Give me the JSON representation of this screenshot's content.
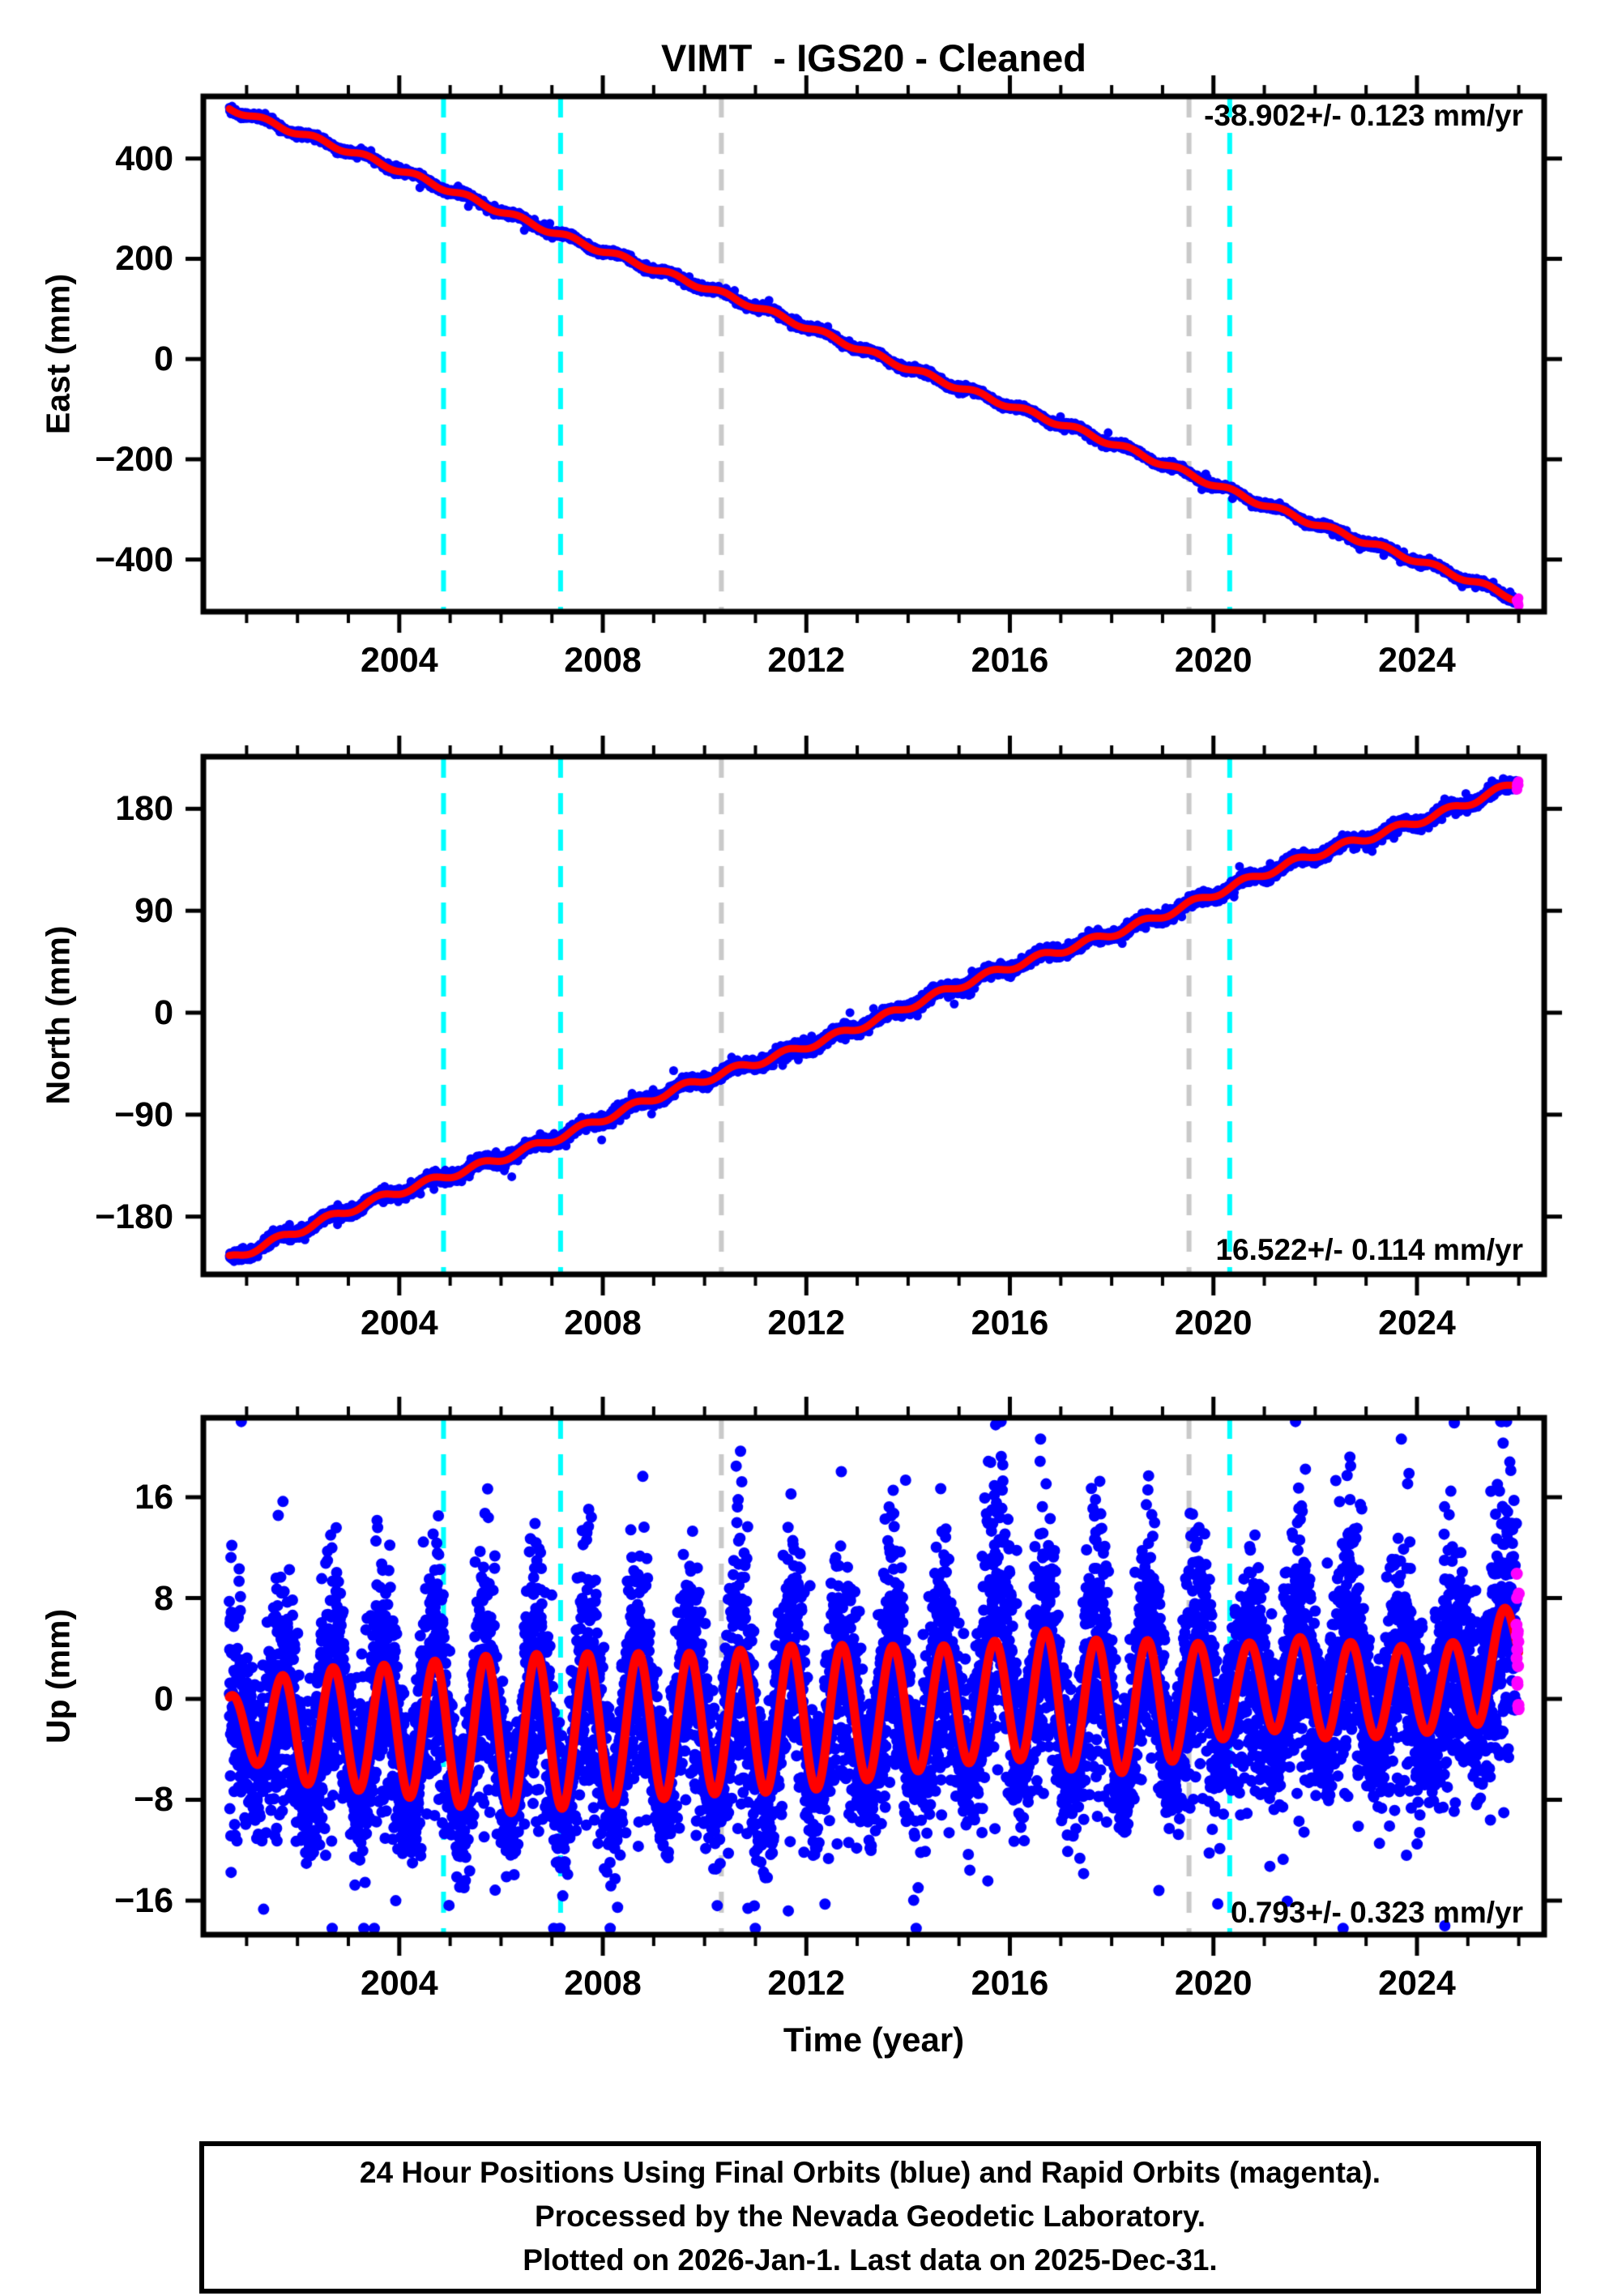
{
  "caption": {
    "lines": [
      "24 Hour Positions Using Final Orbits (blue) and Rapid Orbits (magenta).",
      "Processed by the Nevada Geodetic Laboratory.",
      "Plotted on 2026-Jan-1. Last data on 2025-Dec-31."
    ]
  },
  "chart_data": {
    "type": "scatter",
    "title": "VIMT  - IGS20 - Cleaned",
    "xlabel": "Time (year)",
    "x_axis": {
      "lim": [
        2000.15,
        2026.5
      ],
      "major_ticks": [
        2004,
        2008,
        2012,
        2016,
        2020,
        2024
      ],
      "minor_tick_years": {
        "start": 2001,
        "end": 2026,
        "step": 1
      }
    },
    "data_span": {
      "start": 2000.66,
      "end": 2026.0,
      "points_per_year": 365,
      "rapid_orbit_start": 2025.955
    },
    "vertical_lines": {
      "cyan_years": [
        2004.87,
        2007.17,
        2020.32
      ],
      "gray_years": [
        2010.33,
        2019.52
      ]
    },
    "colors": {
      "final_orbits_blue": "#0000ff",
      "rapid_orbits_magenta": "#ff00ff",
      "model_red": "#ff0000",
      "event_cyan": "#00ffff",
      "event_gray": "#c9c9c9",
      "frame_black": "#000000"
    },
    "rates": {
      "east_mm_per_yr": -38.902,
      "east_sigma": 0.123,
      "north_mm_per_yr": 16.522,
      "north_sigma": 0.114,
      "up_mm_per_yr": 0.793,
      "up_sigma": 0.323
    },
    "panels": [
      {
        "id": "east",
        "ylabel": "East (mm)",
        "ylim": [
          -504,
          524
        ],
        "yticks": [
          400,
          200,
          0,
          -200,
          -400
        ],
        "rate_label": "-38.902+/- 0.123 mm/yr",
        "rate_label_pos": "top-right",
        "model": {
          "kind": "linear",
          "start_value": 504,
          "rate": -38.902,
          "annual_amp": 5.0,
          "annual_phase": 0.1,
          "slow_amp": 3.0,
          "slow_period": 7
        },
        "noise": {
          "sigma": 3.2,
          "outlier_prob": 0.02,
          "outlier_scale": 2.5
        }
      },
      {
        "id": "north",
        "ylabel": "North (mm)",
        "ylim": [
          -231,
          226
        ],
        "yticks": [
          180,
          90,
          0,
          -90,
          -180
        ],
        "rate_label": "16.522+/- 0.114 mm/yr",
        "rate_label_pos": "bottom-right",
        "model": {
          "kind": "linear",
          "start_value": -215,
          "rate": 16.522,
          "annual_amp": 3.0,
          "annual_phase": 0.35,
          "slow_amp": 2.2,
          "slow_period": 6
        },
        "noise": {
          "sigma": 2.4,
          "outlier_prob": 0.02,
          "outlier_scale": 2.5
        }
      },
      {
        "id": "up",
        "ylabel": "Up (mm)",
        "ylim": [
          -18.7,
          22.3
        ],
        "yticks": [
          16,
          8,
          0,
          -8,
          -16
        ],
        "rate_label": "0.793+/- 0.323 mm/yr",
        "rate_label_pos": "bottom-right",
        "model": {
          "kind": "seasonal",
          "peak_phase": 0.7,
          "mean_nodes": [
            [
              2000.66,
              -2.0
            ],
            [
              2003,
              -2.3
            ],
            [
              2006,
              -2.8
            ],
            [
              2009,
              -2.2
            ],
            [
              2012,
              -1.5
            ],
            [
              2015,
              -0.5
            ],
            [
              2016.5,
              0.3
            ],
            [
              2018,
              -0.8
            ],
            [
              2019.5,
              0.0
            ],
            [
              2021,
              1.2
            ],
            [
              2023,
              0.6
            ],
            [
              2024.5,
              0.8
            ],
            [
              2025.2,
              1.5
            ],
            [
              2026,
              4.8
            ]
          ],
          "amp_nodes": [
            [
              2000.66,
              2.2
            ],
            [
              2002,
              4.5
            ],
            [
              2004,
              5.2
            ],
            [
              2006,
              6.3
            ],
            [
              2008,
              6.0
            ],
            [
              2010,
              5.6
            ],
            [
              2012,
              5.8
            ],
            [
              2014,
              5.0
            ],
            [
              2015.5,
              4.6
            ],
            [
              2017,
              5.4
            ],
            [
              2019,
              5.0
            ],
            [
              2020.5,
              3.4
            ],
            [
              2022,
              4.0
            ],
            [
              2024,
              3.4
            ],
            [
              2026,
              3.6
            ]
          ]
        },
        "noise": {
          "sigma_base": 2.6,
          "sigma_seasonal": 2.6,
          "outlier_prob": 0.03,
          "outlier_scale": 1.9,
          "clamp": [
            -18.2,
            22.0
          ],
          "spike_eras": [
            {
              "from": 2002.2,
              "to": 2003.3,
              "amp": 5,
              "sign": "both",
              "prob": 0.35
            },
            {
              "from": 2010.75,
              "to": 2011.2,
              "amp": 6,
              "sign": "neg",
              "prob": 0.4
            },
            {
              "from": 2012.7,
              "to": 2013.0,
              "amp": 5,
              "sign": "neg",
              "prob": 0.4
            },
            {
              "from": 2013.45,
              "to": 2013.75,
              "amp": 7,
              "sign": "pos",
              "prob": 0.45
            },
            {
              "from": 2015.45,
              "to": 2016.15,
              "amp": 13,
              "sign": "pos",
              "prob": 0.6
            },
            {
              "from": 2018.6,
              "to": 2019.05,
              "amp": 6,
              "sign": "pos",
              "prob": 0.45
            },
            {
              "from": 2021.3,
              "to": 2021.7,
              "amp": 6,
              "sign": "pos",
              "prob": 0.45
            },
            {
              "from": 2022.25,
              "to": 2022.7,
              "amp": 9,
              "sign": "pos",
              "prob": 0.5
            },
            {
              "from": 2024.8,
              "to": 2025.35,
              "amp": 6,
              "sign": "pos",
              "prob": 0.4
            }
          ]
        }
      }
    ]
  }
}
